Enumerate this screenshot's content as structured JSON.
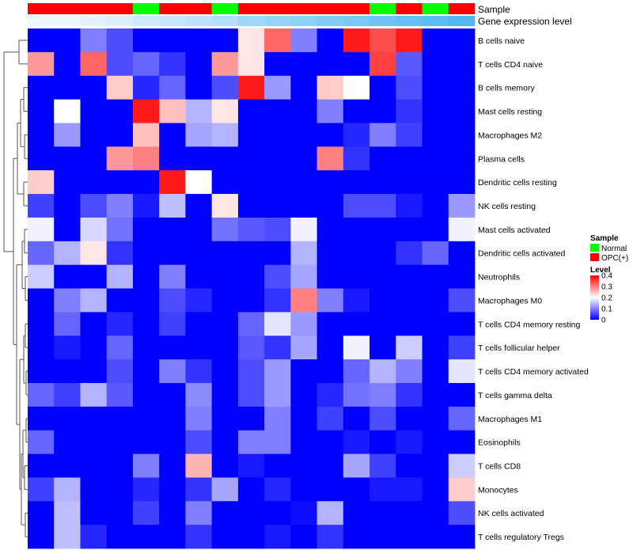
{
  "chart_data": {
    "type": "heatmap",
    "annotation_labels": {
      "sample": "Sample",
      "expression": "Gene expression level"
    },
    "sample_annotation": [
      "OPC(+)",
      "OPC(+)",
      "OPC(+)",
      "OPC(+)",
      "Normal",
      "OPC(+)",
      "OPC(+)",
      "Normal",
      "OPC(+)",
      "OPC(+)",
      "OPC(+)",
      "OPC(+)",
      "OPC(+)",
      "Normal",
      "OPC(+)",
      "Normal",
      "OPC(+)"
    ],
    "expression_annotation": [
      0.1,
      0.1,
      0.15,
      0.2,
      0.25,
      0.3,
      0.35,
      0.4,
      0.5,
      0.55,
      0.6,
      0.65,
      0.7,
      0.75,
      0.8,
      0.85,
      0.9
    ],
    "rows": [
      "B cells naive",
      "T cells CD4 naive",
      "B cells memory",
      "Mast cells resting",
      "Macrophages M2",
      "Plasma cells",
      "Dendritic cells resting",
      "NK cells resting",
      "Mast cells activated",
      "Dendritic cells activated",
      "Neutrophils",
      "Macrophages M0",
      "T cells CD4 memory resting",
      "T cells follicular helper",
      "T cells CD4 memory activated",
      "T cells gamma delta",
      "Macrophages M1",
      "Eosinophils",
      "T cells CD8",
      "Monocytes",
      "NK cells activated",
      "T cells regulatory  Tregs"
    ],
    "values": [
      [
        0,
        0,
        0.1,
        0.06,
        0,
        0,
        0,
        0,
        0.22,
        0.32,
        0.1,
        0,
        0.38,
        0.34,
        0.38,
        0,
        0
      ],
      [
        0.28,
        0,
        0.32,
        0.06,
        0.08,
        0.04,
        0,
        0.28,
        0.22,
        0,
        0,
        0,
        0,
        0.35,
        0.07,
        0,
        0
      ],
      [
        0,
        0,
        0,
        0.24,
        0.03,
        0.08,
        0,
        0.06,
        0.38,
        0.12,
        0,
        0.24,
        0.2,
        0,
        0.06,
        0,
        0
      ],
      [
        0,
        0.2,
        0,
        0,
        0.38,
        0.25,
        0.14,
        0.22,
        0,
        0,
        0,
        0.1,
        0,
        0,
        0.04,
        0,
        0
      ],
      [
        0,
        0.12,
        0,
        0,
        0.25,
        0,
        0.13,
        0.14,
        0,
        0,
        0,
        0,
        0.03,
        0.1,
        0.05,
        0,
        0
      ],
      [
        0,
        0,
        0,
        0.28,
        0.3,
        0,
        0,
        0,
        0,
        0,
        0,
        0.3,
        0.04,
        0,
        0,
        0,
        0
      ],
      [
        0.24,
        0,
        0,
        0,
        0,
        0.38,
        0.2,
        0,
        0,
        0,
        0,
        0,
        0,
        0,
        0,
        0,
        0
      ],
      [
        0.05,
        0,
        0.06,
        0.1,
        0.02,
        0.15,
        0,
        0.22,
        0,
        0,
        0,
        0,
        0.06,
        0.06,
        0.02,
        0,
        0.12
      ],
      [
        0.19,
        0,
        0.17,
        0.09,
        0,
        0,
        0,
        0.09,
        0.07,
        0.06,
        0.19,
        0,
        0,
        0,
        0,
        0,
        0.19
      ],
      [
        0.08,
        0.14,
        0.22,
        0.04,
        0,
        0,
        0,
        0,
        0,
        0,
        0.14,
        0,
        0,
        0,
        0.04,
        0.08,
        0
      ],
      [
        0.16,
        0,
        0,
        0.14,
        0,
        0.1,
        0,
        0,
        0,
        0.06,
        0.13,
        0,
        0,
        0,
        0,
        0,
        0
      ],
      [
        0,
        0.1,
        0.14,
        0,
        0,
        0.06,
        0.03,
        0,
        0,
        0.04,
        0.3,
        0.1,
        0.02,
        0,
        0,
        0,
        0.06
      ],
      [
        0,
        0.08,
        0,
        0.03,
        0,
        0.05,
        0,
        0,
        0.08,
        0.18,
        0.12,
        0,
        0,
        0,
        0,
        0,
        0
      ],
      [
        0,
        0.02,
        0,
        0.08,
        0,
        0,
        0,
        0,
        0.07,
        0.04,
        0.13,
        0,
        0.19,
        0,
        0.16,
        0,
        0.05
      ],
      [
        0,
        0,
        0,
        0.06,
        0,
        0.1,
        0.04,
        0,
        0.06,
        0.12,
        0,
        0,
        0.08,
        0.14,
        0.1,
        0,
        0.18
      ],
      [
        0.08,
        0.05,
        0.14,
        0.07,
        0,
        0,
        0.11,
        0,
        0.06,
        0.12,
        0,
        0.03,
        0.09,
        0.1,
        0.04,
        0,
        0
      ],
      [
        0,
        0,
        0,
        0,
        0,
        0,
        0.1,
        0,
        0,
        0.1,
        0,
        0.05,
        0,
        0.06,
        0,
        0,
        0.08
      ],
      [
        0.08,
        0,
        0,
        0,
        0,
        0,
        0.06,
        0,
        0.1,
        0.1,
        0,
        0,
        0.02,
        0,
        0.02,
        0,
        0
      ],
      [
        0,
        0,
        0,
        0,
        0.1,
        0,
        0.26,
        0,
        0.02,
        0,
        0,
        0,
        0.13,
        0.05,
        0,
        0,
        0.16
      ],
      [
        0.05,
        0.14,
        0,
        0,
        0.03,
        0,
        0.04,
        0.13,
        0,
        0.03,
        0,
        0,
        0,
        0.02,
        0.02,
        0,
        0.24
      ],
      [
        0,
        0.15,
        0,
        0,
        0.05,
        0,
        0.1,
        0,
        0,
        0,
        0.01,
        0.14,
        0,
        0,
        0,
        0,
        0.06
      ],
      [
        0,
        0.15,
        0.03,
        0,
        0,
        0,
        0.04,
        0,
        0,
        0.02,
        0,
        0.04,
        0,
        0,
        0,
        0,
        0
      ]
    ],
    "color_scale": {
      "low": "#0000ff",
      "mid": "#ffffff",
      "high": "#ff0000",
      "midpoint": 0.2,
      "max": 0.4
    },
    "legend": {
      "sample_title": "Sample",
      "sample_items": [
        {
          "label": "Normal",
          "color": "#00ff00"
        },
        {
          "label": "OPC(+)",
          "color": "#ff0000"
        }
      ],
      "level_title": "Level",
      "level_ticks": [
        "0.4",
        "0.3",
        "0.2",
        "0.1",
        "0"
      ],
      "placement": "right"
    },
    "expression_colors": {
      "low": "#ffffff",
      "high": "#40b0f0"
    }
  }
}
